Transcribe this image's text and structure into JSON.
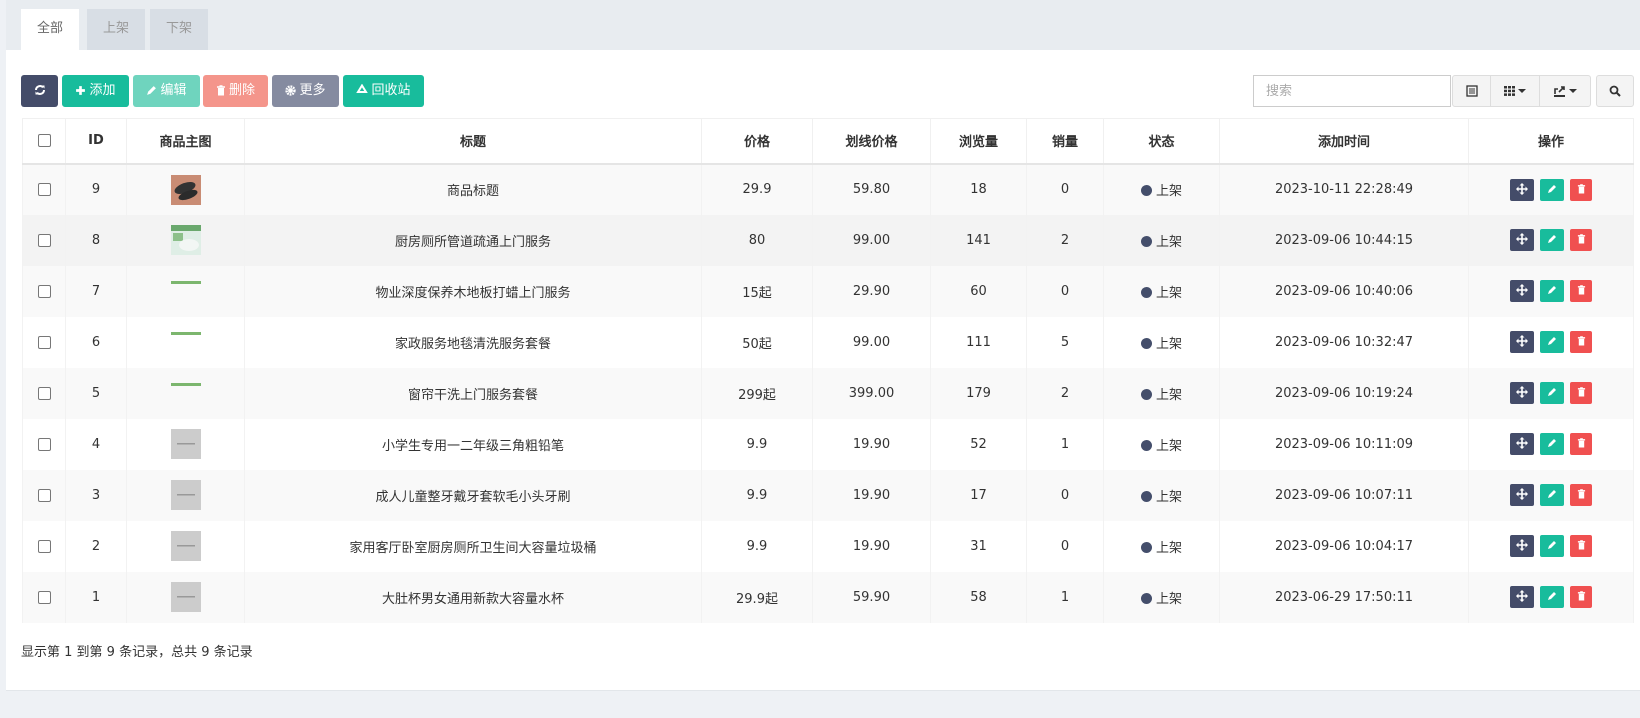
{
  "tabs": [
    {
      "label": "全部",
      "active": true
    },
    {
      "label": "上架"
    },
    {
      "label": "下架"
    }
  ],
  "toolbar": {
    "refresh_icon": "refresh-icon",
    "add": "添加",
    "edit": "编辑",
    "delete": "删除",
    "more": "更多",
    "recycle": "回收站",
    "search_placeholder": "搜索"
  },
  "colors": {
    "primary": "#444c69",
    "success": "#18bc9c",
    "success_light": "#6fd4be",
    "danger_light": "#f4958b",
    "gray": "#858ba0",
    "danger": "#f05050"
  },
  "table": {
    "columns": [
      "",
      "ID",
      "商品主图",
      "标题",
      "价格",
      "划线价格",
      "浏览量",
      "销量",
      "状态",
      "添加时间",
      "操作"
    ],
    "rows": [
      {
        "id": "9",
        "title": "商品标题",
        "price": "29.9",
        "line_price": "59.80",
        "views": "18",
        "sales": "0",
        "status": "上架",
        "time": "2023-10-11 22:28:49",
        "thumb": "shoe"
      },
      {
        "id": "8",
        "title": "厨房厕所管道疏通上门服务",
        "price": "80",
        "line_price": "99.00",
        "views": "141",
        "sales": "2",
        "status": "上架",
        "time": "2023-09-06 10:44:15",
        "thumb": "green"
      },
      {
        "id": "7",
        "title": "物业深度保养木地板打蜡上门服务",
        "price": "15起",
        "line_price": "29.90",
        "views": "60",
        "sales": "0",
        "status": "上架",
        "time": "2023-09-06 10:40:06",
        "thumb": "strip"
      },
      {
        "id": "6",
        "title": "家政服务地毯清洗服务套餐",
        "price": "50起",
        "line_price": "99.00",
        "views": "111",
        "sales": "5",
        "status": "上架",
        "time": "2023-09-06 10:32:47",
        "thumb": "strip"
      },
      {
        "id": "5",
        "title": "窗帘干洗上门服务套餐",
        "price": "299起",
        "line_price": "399.00",
        "views": "179",
        "sales": "2",
        "status": "上架",
        "time": "2023-09-06 10:19:24",
        "thumb": "strip"
      },
      {
        "id": "4",
        "title": "小学生专用一二年级三角粗铅笔",
        "price": "9.9",
        "line_price": "19.90",
        "views": "52",
        "sales": "1",
        "status": "上架",
        "time": "2023-09-06 10:11:09",
        "thumb": "placeholder"
      },
      {
        "id": "3",
        "title": "成人儿童整牙戴牙套软毛小头牙刷",
        "price": "9.9",
        "line_price": "19.90",
        "views": "17",
        "sales": "0",
        "status": "上架",
        "time": "2023-09-06 10:07:11",
        "thumb": "placeholder"
      },
      {
        "id": "2",
        "title": "家用客厅卧室厨房厕所卫生间大容量垃圾桶",
        "price": "9.9",
        "line_price": "19.90",
        "views": "31",
        "sales": "0",
        "status": "上架",
        "time": "2023-09-06 10:04:17",
        "thumb": "placeholder"
      },
      {
        "id": "1",
        "title": "大肚杯男女通用新款大容量水杯",
        "price": "29.9起",
        "line_price": "59.90",
        "views": "58",
        "sales": "1",
        "status": "上架",
        "time": "2023-06-29 17:50:11",
        "thumb": "placeholder"
      }
    ]
  },
  "footer": {
    "summary": "显示第 1 到第 9 条记录，总共 9 条记录"
  }
}
